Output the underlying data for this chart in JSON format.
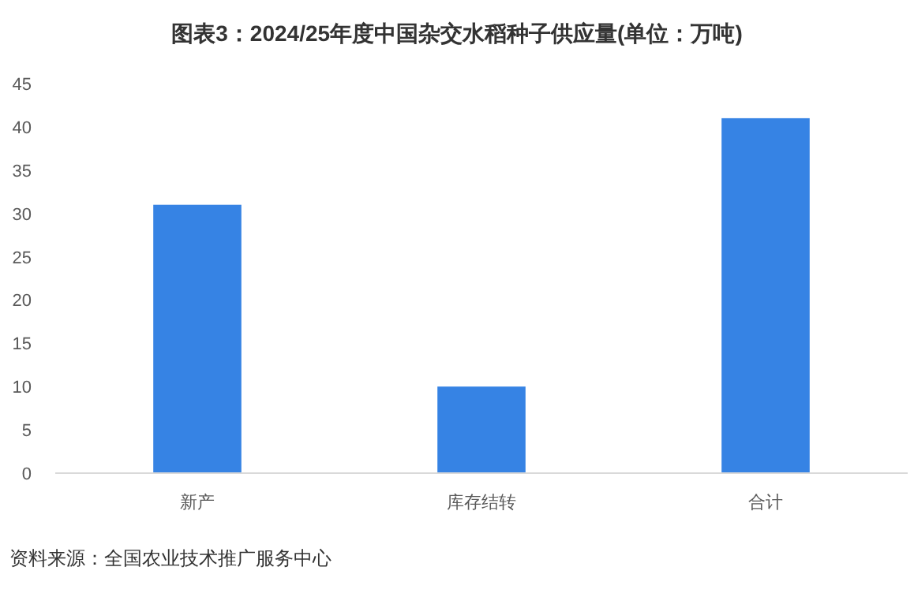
{
  "chart_data": {
    "type": "bar",
    "title": "图表3：2024/25年度中国杂交水稻种子供应量(单位：万吨)",
    "categories": [
      "新产",
      "库存结转",
      "合计"
    ],
    "series": [
      {
        "color": "#3683e4",
        "values": [
          31,
          10,
          41
        ]
      }
    ],
    "ylim": [
      0,
      45
    ],
    "yticks": [
      0,
      5,
      10,
      15,
      20,
      25,
      30,
      35,
      40,
      45
    ],
    "grid": false,
    "annotations": [
      "资料来源：全国农业技术推广服务中心"
    ]
  }
}
